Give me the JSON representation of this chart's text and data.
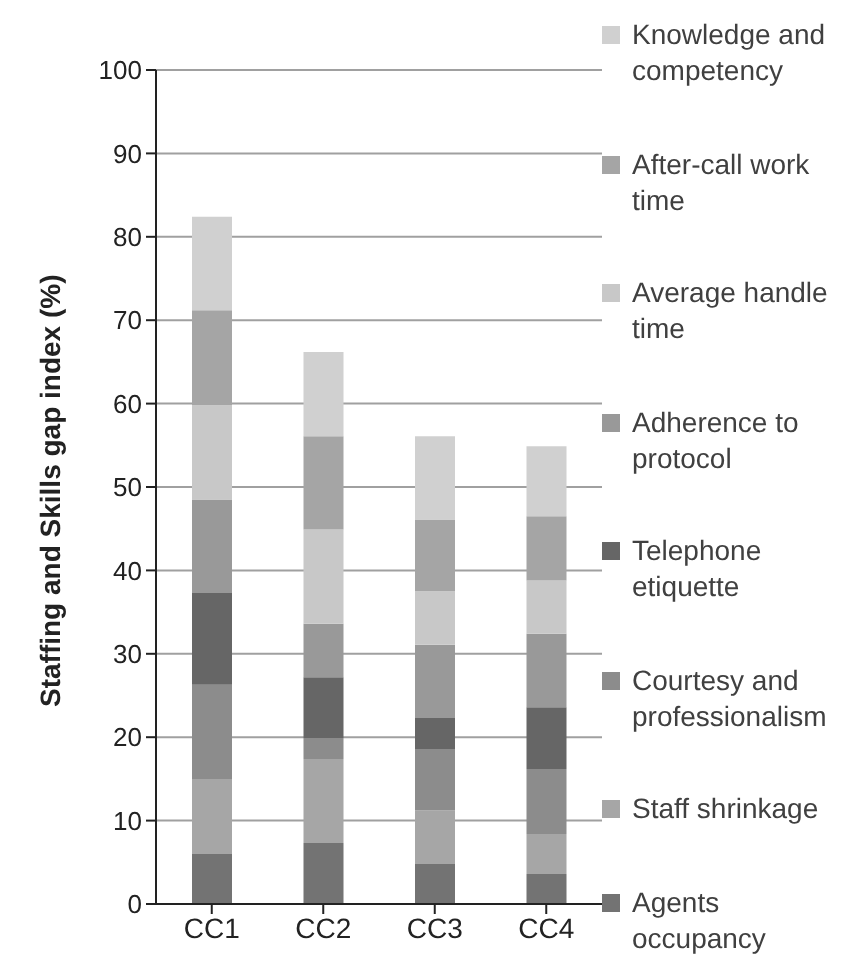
{
  "chart_data": {
    "type": "bar",
    "stacked": true,
    "ylabel": "Staffing and Skills gap index (%)",
    "categories": [
      "CC1",
      "CC2",
      "CC3",
      "CC4"
    ],
    "series": [
      {
        "name": "Agents occupancy",
        "color": "#737373",
        "values": [
          6.0,
          7.3,
          4.8,
          3.6
        ]
      },
      {
        "name": "Staff shrinkage",
        "color": "#a6a6a6",
        "values": [
          9.0,
          10.1,
          6.4,
          4.8
        ]
      },
      {
        "name": "Courtesy and professionalism",
        "color": "#8c8c8c",
        "values": [
          11.3,
          2.5,
          7.4,
          7.8
        ]
      },
      {
        "name": "Telephone etiquette",
        "color": "#666666",
        "values": [
          11.0,
          7.3,
          3.7,
          7.4
        ]
      },
      {
        "name": "Adherence to protocol",
        "color": "#999999",
        "values": [
          11.2,
          6.4,
          8.8,
          8.8
        ]
      },
      {
        "name": "Average handle time",
        "color": "#c8c8c8",
        "values": [
          11.3,
          11.3,
          6.4,
          6.4
        ]
      },
      {
        "name": "After-call work time",
        "color": "#a5a5a5",
        "values": [
          11.4,
          11.2,
          8.6,
          7.7
        ]
      },
      {
        "name": "Knowledge and competency",
        "color": "#d0d0d0",
        "values": [
          11.2,
          10.1,
          10.0,
          8.4
        ]
      }
    ],
    "ylim": [
      0,
      100
    ],
    "yticks": [
      0,
      10,
      20,
      30,
      40,
      50,
      60,
      70,
      80,
      90,
      100
    ],
    "grid": "y",
    "legend": "right"
  }
}
